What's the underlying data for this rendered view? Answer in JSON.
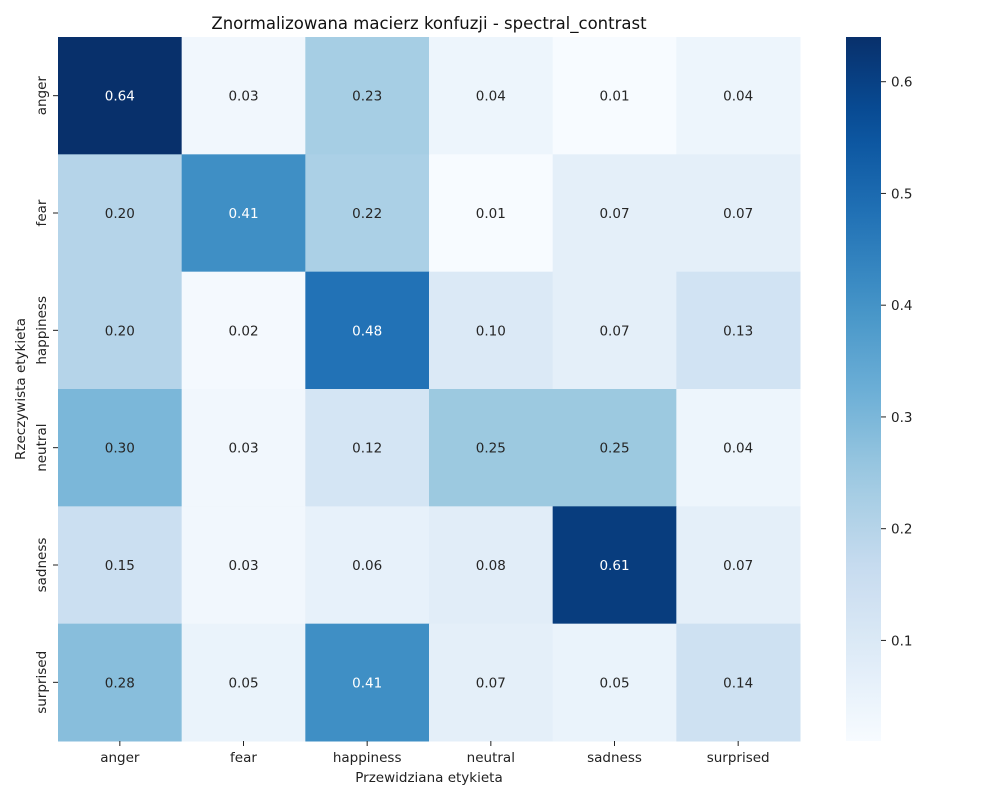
{
  "chart_data": {
    "type": "heatmap",
    "title": "Znormalizowana macierz konfuzji - spectral_contrast",
    "xlabel": "Przewidziana etykieta",
    "ylabel": "Rzeczywista etykieta",
    "x_categories": [
      "anger",
      "fear",
      "happiness",
      "neutral",
      "sadness",
      "surprised"
    ],
    "y_categories": [
      "anger",
      "fear",
      "happiness",
      "neutral",
      "sadness",
      "surprised"
    ],
    "values": [
      [
        0.64,
        0.03,
        0.23,
        0.04,
        0.01,
        0.04
      ],
      [
        0.2,
        0.41,
        0.22,
        0.01,
        0.07,
        0.07
      ],
      [
        0.2,
        0.02,
        0.48,
        0.1,
        0.07,
        0.13
      ],
      [
        0.3,
        0.03,
        0.12,
        0.25,
        0.25,
        0.04
      ],
      [
        0.15,
        0.03,
        0.06,
        0.08,
        0.61,
        0.07
      ],
      [
        0.28,
        0.05,
        0.41,
        0.07,
        0.05,
        0.14
      ]
    ],
    "value_labels": [
      [
        "0.64",
        "0.03",
        "0.23",
        "0.04",
        "0.01",
        "0.04"
      ],
      [
        "0.20",
        "0.41",
        "0.22",
        "0.01",
        "0.07",
        "0.07"
      ],
      [
        "0.20",
        "0.02",
        "0.48",
        "0.10",
        "0.07",
        "0.13"
      ],
      [
        "0.30",
        "0.03",
        "0.12",
        "0.25",
        "0.25",
        "0.04"
      ],
      [
        "0.15",
        "0.03",
        "0.06",
        "0.08",
        "0.61",
        "0.07"
      ],
      [
        "0.28",
        "0.05",
        "0.41",
        "0.07",
        "0.05",
        "0.14"
      ]
    ],
    "colormap": "Blues",
    "colorbar": {
      "vmin": 0.01,
      "vmax": 0.64,
      "ticks": [
        0.1,
        0.2,
        0.3,
        0.4,
        0.5,
        0.6
      ],
      "tick_labels": [
        "0.1",
        "0.2",
        "0.3",
        "0.4",
        "0.5",
        "0.6"
      ]
    },
    "grid": false,
    "text_color_dark": "#262626",
    "text_color_light": "#ffffff"
  }
}
